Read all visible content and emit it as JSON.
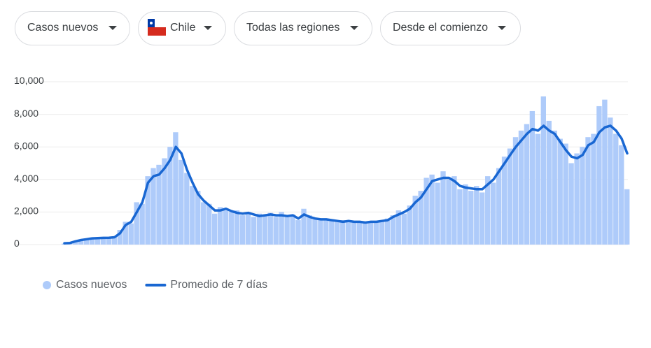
{
  "controls": [
    "Casos nuevos",
    "Chile",
    "Todas las regiones",
    "Desde el comienzo"
  ],
  "chart_data": {
    "type": "bar",
    "categories": [
      null,
      null,
      null,
      null,
      null,
      null,
      null,
      null,
      null,
      null,
      null,
      null,
      null,
      null,
      null,
      null,
      null,
      null,
      null,
      null,
      null,
      null,
      null,
      null,
      null,
      null,
      null,
      null,
      null,
      null,
      null,
      null,
      null,
      null,
      null,
      null,
      null,
      null,
      null,
      null,
      null,
      null,
      null,
      null,
      null,
      null,
      null,
      null,
      null,
      null,
      null,
      null,
      null,
      null,
      null,
      null,
      null,
      null,
      null,
      null,
      null,
      null,
      null,
      null,
      null,
      null,
      null,
      null,
      null,
      null,
      null,
      null,
      null,
      null,
      null,
      null,
      null,
      null,
      null,
      null,
      null,
      null,
      null,
      null,
      null,
      null,
      null,
      null,
      null,
      null,
      null,
      null,
      null,
      null,
      null,
      null,
      null,
      null,
      null,
      null,
      null,
      null
    ],
    "series": [
      {
        "name": "Casos nuevos",
        "color": "#aecbfa",
        "type": "bar",
        "values": [
          60,
          90,
          180,
          300,
          350,
          400,
          420,
          380,
          450,
          500,
          900,
          1400,
          1300,
          2600,
          2500,
          4200,
          4700,
          4900,
          5300,
          6000,
          6900,
          5200,
          4400,
          3600,
          3300,
          2600,
          2500,
          1900,
          2300,
          2100,
          2000,
          2100,
          1800,
          2000,
          1700,
          1900,
          1850,
          1950,
          1700,
          2000,
          1700,
          1850,
          1500,
          2200,
          1800,
          1550,
          1600,
          1500,
          1550,
          1400,
          1500,
          1400,
          1450,
          1350,
          1400,
          1450,
          1350,
          1500,
          1600,
          1800,
          2100,
          1900,
          2400,
          3000,
          3300,
          4100,
          4300,
          3800,
          4500,
          4000,
          4200,
          3400,
          3700,
          3300,
          3600,
          3200,
          4200,
          3800,
          4700,
          5400,
          5900,
          6600,
          7000,
          7400,
          8200,
          6800,
          9100,
          7600,
          7000,
          6500,
          6200,
          5000,
          5600,
          6000,
          6600,
          6800,
          8500,
          8900,
          7800,
          6800,
          6100,
          3400
        ]
      },
      {
        "name": "Promedio de 7 días",
        "color": "#1967d2",
        "type": "line",
        "values": [
          80,
          100,
          200,
          280,
          330,
          380,
          400,
          410,
          420,
          450,
          700,
          1200,
          1400,
          2000,
          2600,
          3800,
          4200,
          4300,
          4700,
          5200,
          6000,
          5600,
          4600,
          3800,
          3100,
          2700,
          2400,
          2100,
          2100,
          2200,
          2050,
          1950,
          1900,
          1950,
          1850,
          1750,
          1800,
          1850,
          1800,
          1800,
          1750,
          1800,
          1600,
          1850,
          1700,
          1600,
          1550,
          1550,
          1500,
          1450,
          1400,
          1450,
          1400,
          1400,
          1350,
          1400,
          1400,
          1450,
          1500,
          1700,
          1850,
          2000,
          2200,
          2600,
          2900,
          3400,
          3900,
          4000,
          4100,
          4100,
          3900,
          3600,
          3500,
          3450,
          3400,
          3400,
          3700,
          4000,
          4500,
          5000,
          5500,
          6000,
          6400,
          6800,
          7100,
          7000,
          7300,
          7000,
          6800,
          6300,
          5800,
          5400,
          5300,
          5500,
          6100,
          6300,
          6900,
          7200,
          7300,
          7000,
          6500,
          5600
        ]
      }
    ],
    "ylim": [
      0,
      10000
    ],
    "yticks": [
      0,
      {
        "value": 2000,
        "label": "2,000"
      },
      {
        "value": 4000,
        "label": "4,000"
      },
      {
        "value": 6000,
        "label": "6,000"
      },
      {
        "value": 8000,
        "label": "8,000"
      },
      {
        "value": 10000,
        "label": "10,000"
      }
    ],
    "grid": true
  }
}
